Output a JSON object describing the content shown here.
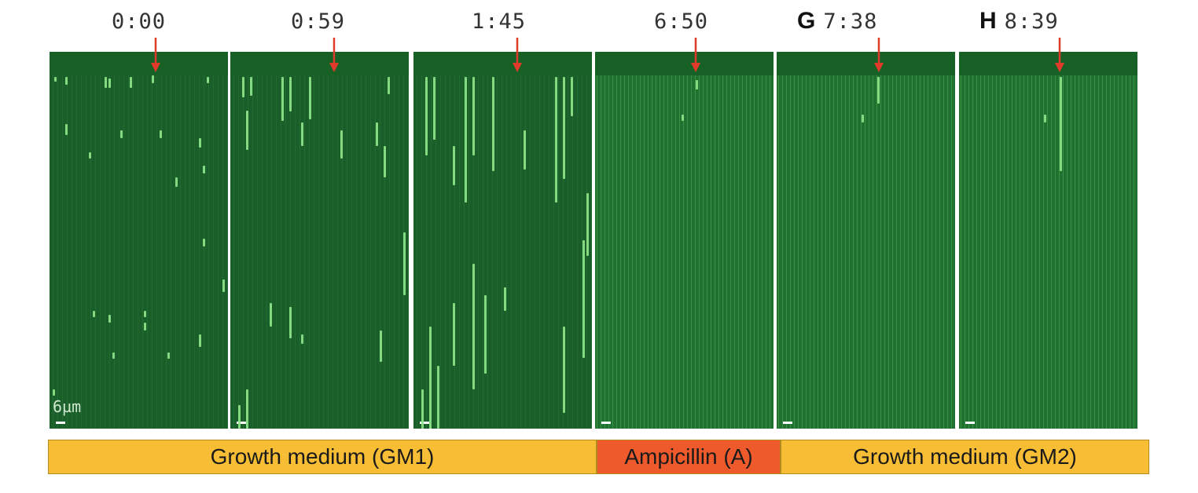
{
  "panels": [
    {
      "letter": "",
      "time": "0:00"
    },
    {
      "letter": "",
      "time": "0:59"
    },
    {
      "letter": "",
      "time": "1:45"
    },
    {
      "letter": "",
      "time": "6:50"
    },
    {
      "letter": "G",
      "time": "7:38"
    },
    {
      "letter": "H",
      "time": "8:39"
    }
  ],
  "scale_label": "6µm",
  "media": [
    {
      "label": "Growth medium (GM1)",
      "color": "#f7bd34"
    },
    {
      "label": "Ampicillin (A)",
      "color": "#ef5a2c"
    },
    {
      "label": "Growth medium (GM2)",
      "color": "#f7bd34"
    }
  ],
  "colors": {
    "panel_green": "#1a5e2a",
    "cell_green": "#8fe88a",
    "arrow_red": "#e03a2a"
  }
}
